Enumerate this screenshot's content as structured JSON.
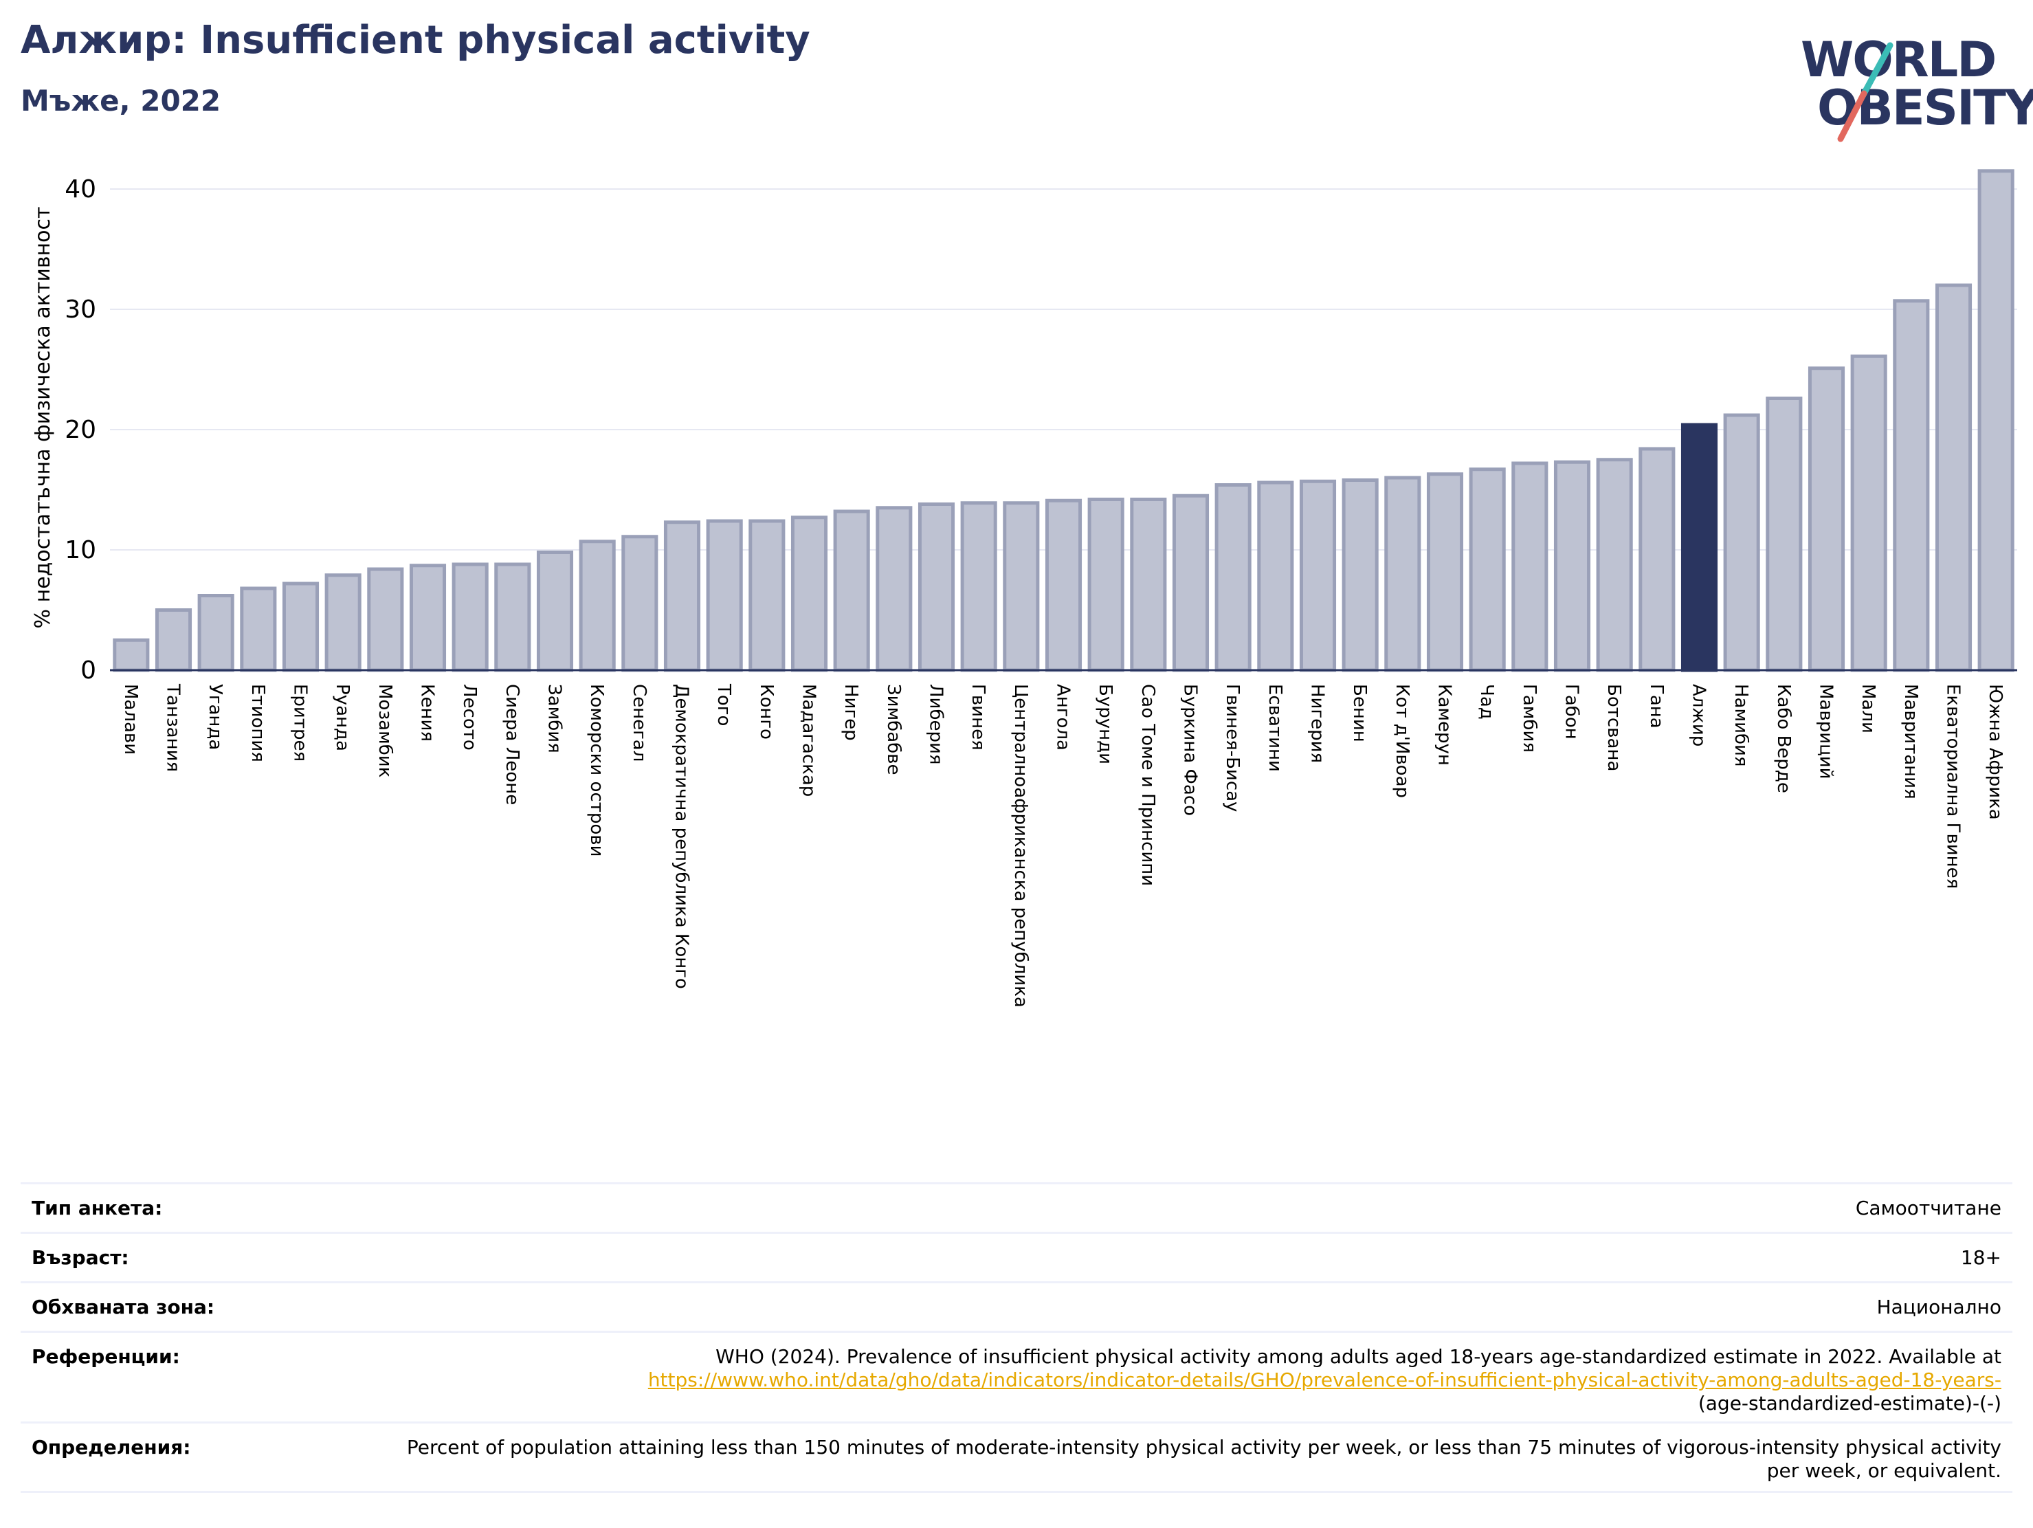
{
  "header": {
    "title": "Алжир: Insufficient physical activity",
    "subtitle": "Мъже, 2022"
  },
  "logo": {
    "line1": "WORLD",
    "line2": "OBESITY",
    "text_color": "#2a3560",
    "slash_colors": [
      "#3bbcb6",
      "#e2685e"
    ]
  },
  "chart_data": {
    "type": "bar",
    "ylabel": "% недостатъчна физическа активност",
    "ylim": [
      0,
      42
    ],
    "yticks": [
      0,
      10,
      20,
      30,
      40
    ],
    "grid": true,
    "bar_color": "#bec2d2",
    "bar_edge_color": "#9aa0b8",
    "highlight_color": "#2a3560",
    "highlight": "Алжир",
    "categories": [
      "Малави",
      "Танзания",
      "Уганда",
      "Етиопия",
      "Еритрея",
      "Руанда",
      "Мозамбик",
      "Кения",
      "Лесото",
      "Сиера Леоне",
      "Замбия",
      "Коморски острови",
      "Сенегал",
      "Демократична република Конго",
      "Того",
      "Конго",
      "Мадагаскар",
      "Нигер",
      "Зимбабве",
      "Либерия",
      "Гвинея",
      "Централноафриканска република",
      "Ангола",
      "Бурунди",
      "Сао Томе и Принсипи",
      "Буркина Фасо",
      "Гвинея-Бисау",
      "Есватини",
      "Нигерия",
      "Бенин",
      "Кот д'Ивоар",
      "Камерун",
      "Чад",
      "Гамбия",
      "Габон",
      "Ботсвана",
      "Гана",
      "Алжир",
      "Намибия",
      "Кабо Верде",
      "Мавриций",
      "Мали",
      "Мавритания",
      "Екваториална Гвинея",
      "Южна Африка"
    ],
    "values": [
      2.5,
      5.0,
      6.2,
      6.8,
      7.2,
      7.9,
      8.4,
      8.7,
      8.8,
      8.8,
      9.8,
      10.7,
      11.1,
      12.3,
      12.4,
      12.4,
      12.7,
      13.2,
      13.5,
      13.8,
      13.9,
      13.9,
      14.1,
      14.2,
      14.2,
      14.5,
      15.4,
      15.6,
      15.7,
      15.8,
      16.0,
      16.3,
      16.7,
      17.2,
      17.3,
      17.5,
      18.4,
      20.4,
      21.2,
      22.6,
      25.1,
      26.1,
      30.7,
      32.0,
      41.5
    ]
  },
  "info": {
    "survey_type": {
      "label": "Тип анкета:",
      "value": "Самоотчитане"
    },
    "age": {
      "label": "Възраст:",
      "value": "18+"
    },
    "coverage": {
      "label": "Обхваната зона:",
      "value": "Национално"
    },
    "references": {
      "label": "Референции:",
      "text": "WHO (2024). Prevalence of insufficient physical activity among adults aged 18-years age-standardized estimate in 2022. Available at",
      "link": "https://www.who.int/data/gho/data/indicators/indicator-details/GHO/prevalence-of-insufficient-physical-activity-among-adults-aged-18-years-",
      "tail": "(age-standardized-estimate)-(-)"
    },
    "definitions": {
      "label": "Определения:",
      "text": "Percent of population attaining less than 150 minutes of moderate-intensity physical activity per week, or less than 75 minutes of vigorous-intensity physical activity per week, or equivalent."
    }
  }
}
